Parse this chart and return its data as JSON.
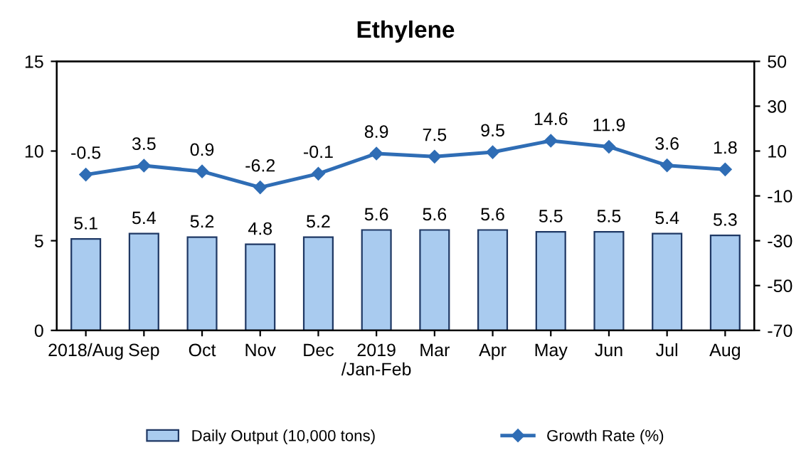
{
  "chart_data": {
    "type": "bar",
    "title": "Ethylene",
    "categories": [
      "2018/Aug",
      "Sep",
      "Oct",
      "Nov",
      "Dec",
      "2019\n/Jan-Feb",
      "Mar",
      "Apr",
      "May",
      "Jun",
      "Jul",
      "Aug"
    ],
    "series": [
      {
        "name": "Daily Output (10,000 tons)",
        "color": "#a9cbef",
        "values": [
          5.1,
          5.4,
          5.2,
          4.8,
          5.2,
          5.6,
          5.6,
          5.6,
          5.5,
          5.5,
          5.4,
          5.3
        ]
      },
      {
        "name": "Growth Rate (%)",
        "type": "line",
        "axis": "y2",
        "color": "#2f6db5",
        "values": [
          -0.5,
          3.5,
          0.9,
          -6.2,
          -0.1,
          8.9,
          7.5,
          9.5,
          14.6,
          11.9,
          3.6,
          1.8
        ]
      }
    ],
    "ylim": [
      0,
      15
    ],
    "yticks": [
      0,
      5,
      10,
      15
    ],
    "y2lim": [
      -70,
      50
    ],
    "y2ticks": [
      -70,
      -50,
      -30,
      -10,
      10,
      30,
      50
    ],
    "data_labels": true,
    "legend": "bottom",
    "marker": "diamond",
    "line_style": "solid",
    "grid": false
  }
}
